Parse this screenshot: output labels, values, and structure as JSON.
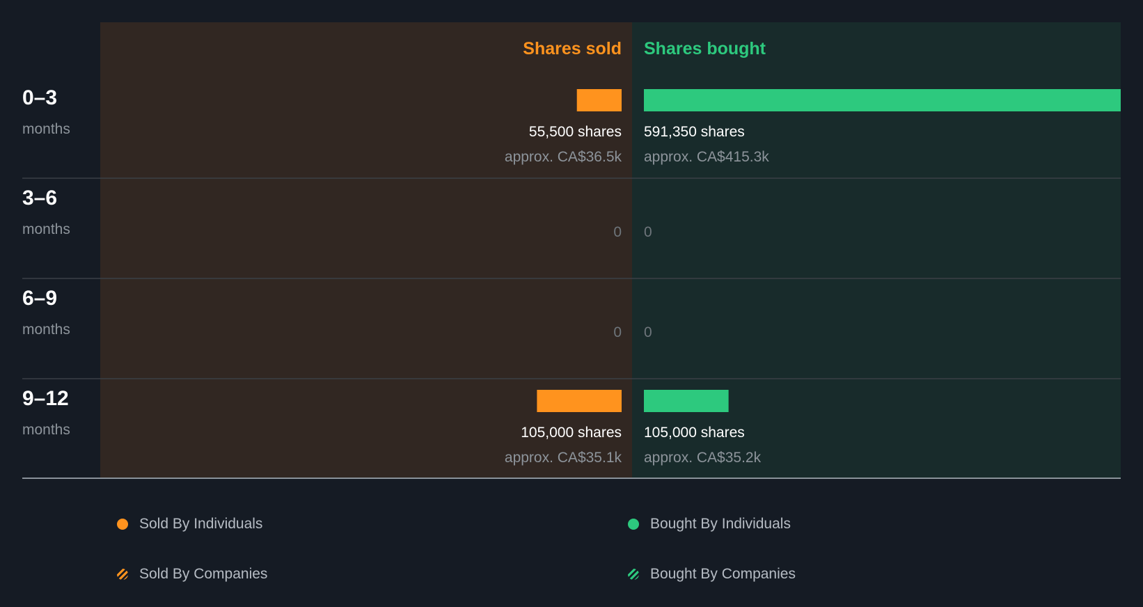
{
  "colors": {
    "background": "#151b24",
    "sold": "#ff931e",
    "bought": "#2dc97e",
    "sold_panel": "#312722",
    "bought_panel": "#182b2b",
    "text": "#ffffff",
    "muted": "#8d949b",
    "zero": "#6e757b"
  },
  "chart_data": {
    "type": "bar",
    "orientation": "horizontal-diverging",
    "headers": {
      "sold": "Shares sold",
      "bought": "Shares bought"
    },
    "categories": [
      {
        "range": "0–3",
        "unit": "months"
      },
      {
        "range": "3–6",
        "unit": "months"
      },
      {
        "range": "6–9",
        "unit": "months"
      },
      {
        "range": "9–12",
        "unit": "months"
      }
    ],
    "series": [
      {
        "name": "Shares sold",
        "values": [
          55500,
          0,
          0,
          105000
        ],
        "labels": [
          "55,500 shares",
          "0",
          "0",
          "105,000 shares"
        ],
        "approx": [
          "approx. CA$36.5k",
          "",
          "",
          "approx. CA$35.1k"
        ]
      },
      {
        "name": "Shares bought",
        "values": [
          591350,
          0,
          0,
          105000
        ],
        "labels": [
          "591,350 shares",
          "0",
          "0",
          "105,000 shares"
        ],
        "approx": [
          "approx. CA$415.3k",
          "",
          "",
          "approx. CA$35.2k"
        ]
      }
    ],
    "scale_max": 591350,
    "legend": [
      {
        "label": "Sold By Individuals",
        "style": "dot-sold"
      },
      {
        "label": "Bought By Individuals",
        "style": "dot-bought"
      },
      {
        "label": "Sold By Companies",
        "style": "hatch-sold"
      },
      {
        "label": "Bought By Companies",
        "style": "hatch-bought"
      }
    ]
  }
}
